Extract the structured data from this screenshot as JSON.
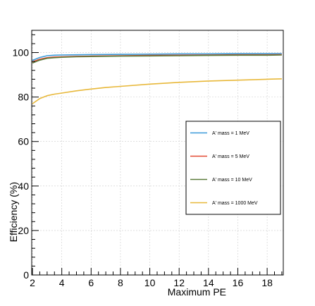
{
  "chart_data": {
    "type": "line",
    "xlabel": "Maximum PE",
    "ylabel": "Efficiency (%)",
    "xlim": [
      1.95,
      19.1
    ],
    "ylim": [
      0,
      110
    ],
    "x_ticks": [
      2,
      4,
      6,
      8,
      10,
      12,
      14,
      16,
      18
    ],
    "y_ticks": [
      0,
      20,
      40,
      60,
      80,
      100
    ],
    "grid": true,
    "legend_position": "right-middle",
    "series": [
      {
        "name": "A' mass = 1 MeV",
        "color": "#3a9ad9",
        "x": [
          2,
          2.5,
          3,
          3.5,
          4,
          5,
          6,
          8,
          10,
          12,
          14,
          16,
          18,
          19
        ],
        "y": [
          96.5,
          97.8,
          98.6,
          98.8,
          98.9,
          99.0,
          99.1,
          99.2,
          99.3,
          99.4,
          99.4,
          99.5,
          99.5,
          99.5
        ]
      },
      {
        "name": "A' mass = 5 MeV",
        "color": "#e24a33",
        "x": [
          2,
          2.5,
          3,
          3.5,
          4,
          5,
          6,
          8,
          10,
          12,
          14,
          16,
          18,
          19
        ],
        "y": [
          95.8,
          97.0,
          97.7,
          98.0,
          98.1,
          98.3,
          98.4,
          98.6,
          98.7,
          98.8,
          98.9,
          99.0,
          99.0,
          99.1
        ]
      },
      {
        "name": "A' mass = 10 MeV",
        "color": "#5a7a3a",
        "x": [
          2,
          2.5,
          3,
          3.5,
          4,
          5,
          6,
          8,
          10,
          12,
          14,
          16,
          18,
          19
        ],
        "y": [
          95.3,
          96.6,
          97.4,
          97.7,
          97.9,
          98.1,
          98.2,
          98.4,
          98.5,
          98.6,
          98.7,
          98.8,
          98.8,
          98.9
        ]
      },
      {
        "name": "A' mass = 1000 MeV",
        "color": "#e8b83a",
        "x": [
          2,
          2.5,
          3,
          3.5,
          4,
          5,
          6,
          7,
          8,
          10,
          12,
          14,
          16,
          18,
          19
        ],
        "y": [
          77.0,
          79.3,
          80.6,
          81.3,
          81.8,
          82.8,
          83.6,
          84.3,
          84.8,
          85.8,
          86.6,
          87.2,
          87.6,
          88.0,
          88.2
        ]
      }
    ]
  }
}
